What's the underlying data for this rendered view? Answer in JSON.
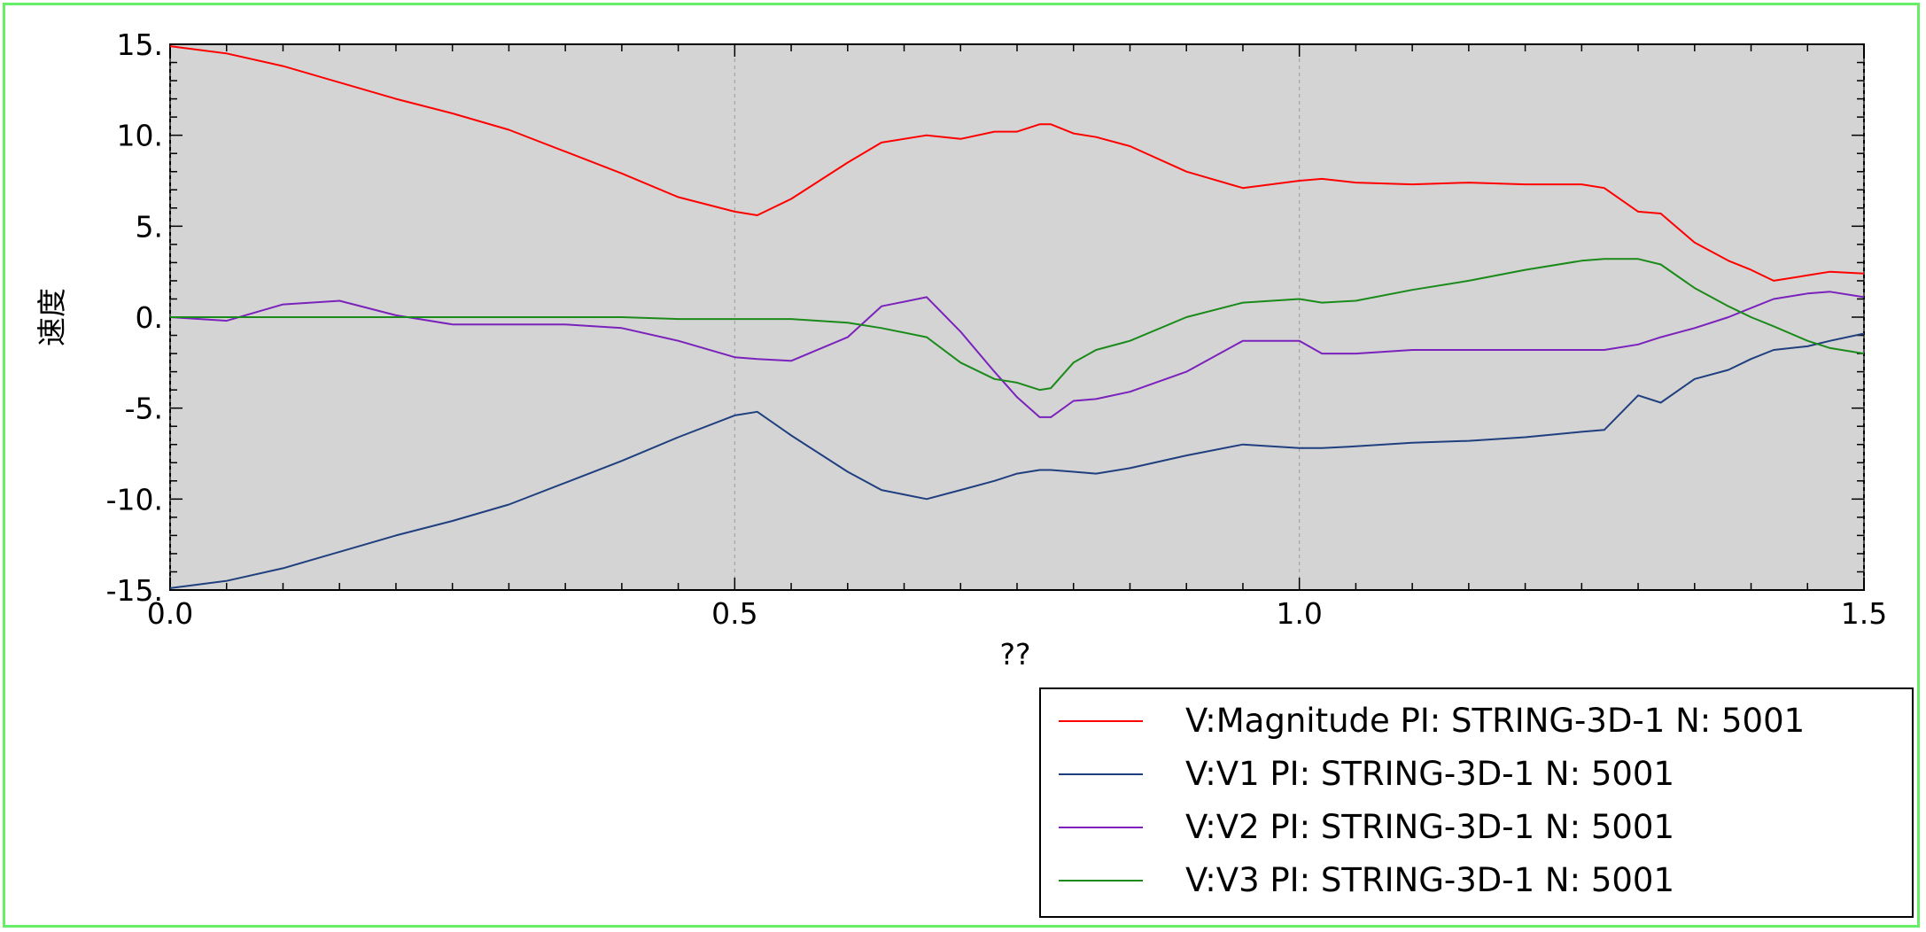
{
  "chart_data": {
    "type": "line",
    "xlabel": "??",
    "ylabel": "速度",
    "xlim": [
      0.0,
      1.5
    ],
    "ylim": [
      -15,
      15
    ],
    "xticks": [
      {
        "value": 0.0,
        "label": "0.0"
      },
      {
        "value": 0.5,
        "label": "0.5"
      },
      {
        "value": 1.0,
        "label": "1.0"
      },
      {
        "value": 1.5,
        "label": "1.5"
      }
    ],
    "yticks": [
      {
        "value": 15,
        "label": "15."
      },
      {
        "value": 10,
        "label": "10."
      },
      {
        "value": 5,
        "label": "5."
      },
      {
        "value": 0,
        "label": "0."
      },
      {
        "value": -5,
        "label": "-5."
      },
      {
        "value": -10,
        "label": "-10."
      },
      {
        "value": -15,
        "label": "-15."
      }
    ],
    "grid": true,
    "plot_background": "#d4d4d4",
    "legend_position": "bottom-right",
    "x": [
      0.0,
      0.05,
      0.1,
      0.15,
      0.2,
      0.25,
      0.3,
      0.35,
      0.4,
      0.45,
      0.5,
      0.52,
      0.55,
      0.6,
      0.63,
      0.67,
      0.7,
      0.73,
      0.75,
      0.77,
      0.78,
      0.8,
      0.82,
      0.85,
      0.9,
      0.95,
      1.0,
      1.02,
      1.05,
      1.1,
      1.15,
      1.2,
      1.25,
      1.27,
      1.3,
      1.32,
      1.35,
      1.38,
      1.4,
      1.42,
      1.45,
      1.47,
      1.5
    ],
    "series": [
      {
        "name": "V:Magnitude PI: STRING-3D-1 N: 5001",
        "color": "#ff0000",
        "values": [
          14.9,
          14.5,
          13.8,
          12.9,
          12.0,
          11.2,
          10.3,
          9.1,
          7.9,
          6.6,
          5.8,
          5.6,
          6.5,
          8.5,
          9.6,
          10.0,
          9.8,
          10.2,
          10.2,
          10.6,
          10.6,
          10.1,
          9.9,
          9.4,
          8.0,
          7.1,
          7.5,
          7.6,
          7.4,
          7.3,
          7.4,
          7.3,
          7.3,
          7.1,
          5.8,
          5.7,
          4.1,
          3.1,
          2.6,
          2.0,
          2.3,
          2.5,
          2.4
        ]
      },
      {
        "name": "V:V1 PI: STRING-3D-1 N: 5001",
        "color": "#1f3f7f",
        "values": [
          -14.9,
          -14.5,
          -13.8,
          -12.9,
          -12.0,
          -11.2,
          -10.3,
          -9.1,
          -7.9,
          -6.6,
          -5.4,
          -5.2,
          -6.5,
          -8.5,
          -9.5,
          -10.0,
          -9.5,
          -9.0,
          -8.6,
          -8.4,
          -8.4,
          -8.5,
          -8.6,
          -8.3,
          -7.6,
          -7.0,
          -7.2,
          -7.2,
          -7.1,
          -6.9,
          -6.8,
          -6.6,
          -6.3,
          -6.2,
          -4.3,
          -4.7,
          -3.4,
          -2.9,
          -2.3,
          -1.8,
          -1.6,
          -1.3,
          -0.9
        ]
      },
      {
        "name": "V:V2 PI: STRING-3D-1 N: 5001",
        "color": "#7a22bb",
        "values": [
          0.0,
          -0.2,
          0.7,
          0.9,
          0.1,
          -0.4,
          -0.4,
          -0.4,
          -0.6,
          -1.3,
          -2.2,
          -2.3,
          -2.4,
          -1.1,
          0.6,
          1.1,
          -0.8,
          -3.0,
          -4.4,
          -5.5,
          -5.5,
          -4.6,
          -4.5,
          -4.1,
          -3.0,
          -1.3,
          -1.3,
          -2.0,
          -2.0,
          -1.8,
          -1.8,
          -1.8,
          -1.8,
          -1.8,
          -1.5,
          -1.1,
          -0.6,
          0.0,
          0.5,
          1.0,
          1.3,
          1.4,
          1.1
        ]
      },
      {
        "name": "V:V3 PI: STRING-3D-1 N: 5001",
        "color": "#1a8a1a",
        "values": [
          0.0,
          0.0,
          0.0,
          0.0,
          0.0,
          0.0,
          0.0,
          0.0,
          0.0,
          -0.1,
          -0.1,
          -0.1,
          -0.1,
          -0.3,
          -0.6,
          -1.1,
          -2.5,
          -3.4,
          -3.6,
          -4.0,
          -3.9,
          -2.5,
          -1.8,
          -1.3,
          0.0,
          0.8,
          1.0,
          0.8,
          0.9,
          1.5,
          2.0,
          2.6,
          3.1,
          3.2,
          3.2,
          2.9,
          1.6,
          0.6,
          0.0,
          -0.5,
          -1.3,
          -1.7,
          -2.0
        ]
      }
    ]
  }
}
